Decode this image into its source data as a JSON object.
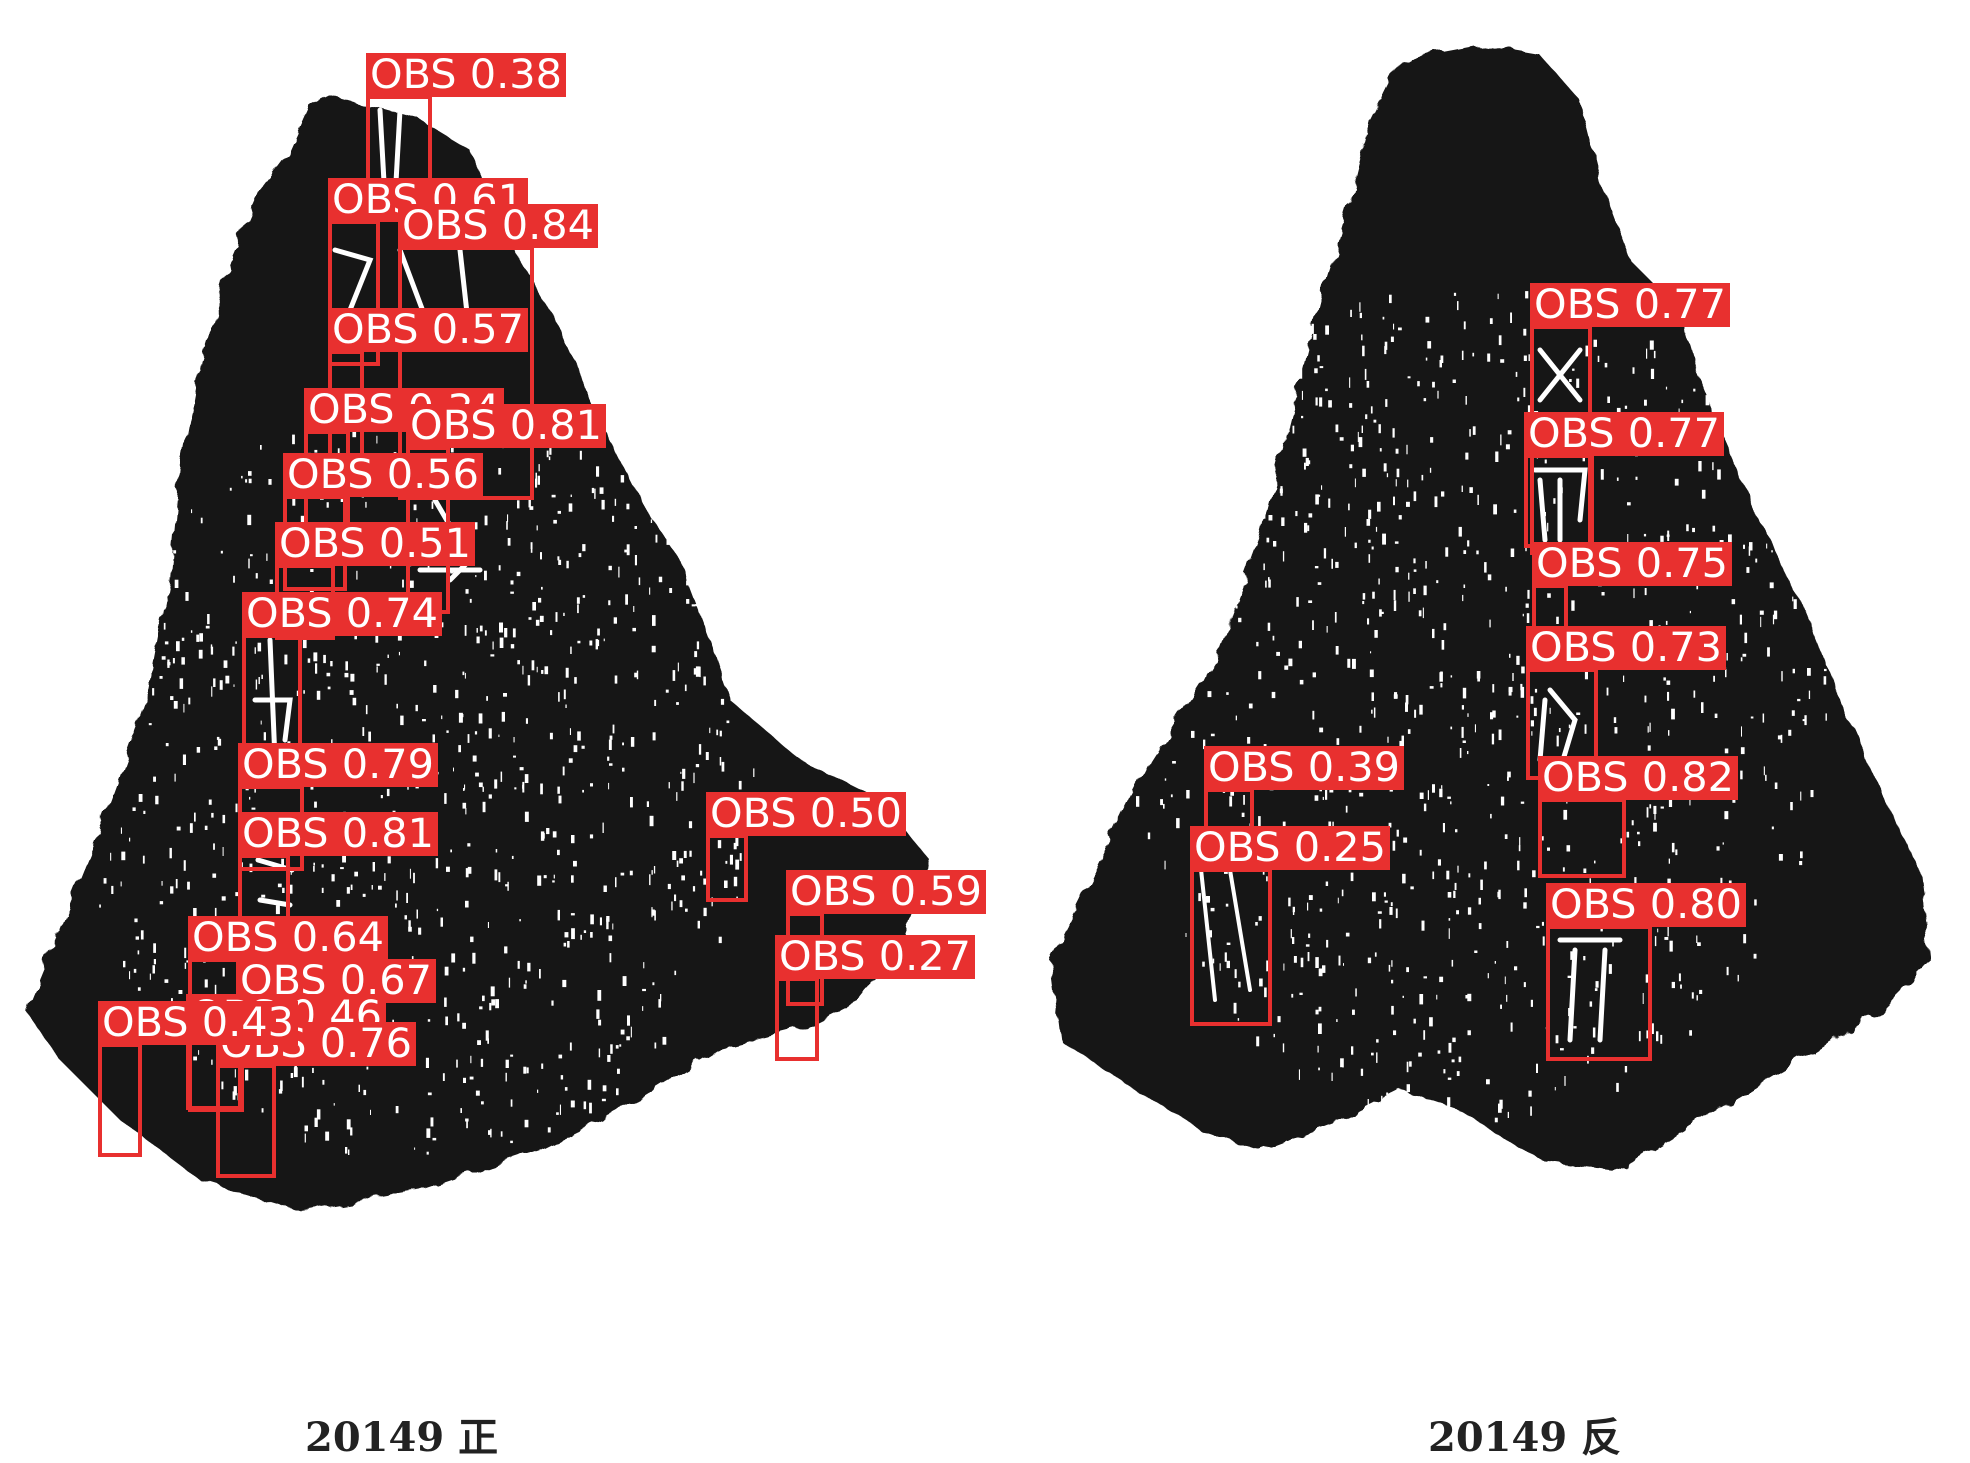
{
  "captions": {
    "front": "20149 正",
    "back": "20149 反"
  },
  "colors": {
    "detection": "#e8302f",
    "rubbing": "#141414",
    "background": "#ffffff"
  },
  "detections": {
    "front": [
      {
        "label": "OBS",
        "score": "0.38"
      },
      {
        "label": "OBS",
        "score": "0.61"
      },
      {
        "label": "OBS",
        "score": "0.84"
      },
      {
        "label": "OBS",
        "score": "0.57"
      },
      {
        "label": "OBS",
        "score": "0.34"
      },
      {
        "label": "OBS",
        "score": "0.81"
      },
      {
        "label": "OBS",
        "score": "0.56"
      },
      {
        "label": "OBS",
        "score": "0.51"
      },
      {
        "label": "OBS",
        "score": "0.74"
      },
      {
        "label": "OBS",
        "score": "0.79"
      },
      {
        "label": "OBS",
        "score": "0.81"
      },
      {
        "label": "OBS",
        "score": "0.50"
      },
      {
        "label": "OBS",
        "score": "0.59"
      },
      {
        "label": "OBS",
        "score": "0.64"
      },
      {
        "label": "OBS",
        "score": "0.67"
      },
      {
        "label": "OBS",
        "score": "0.27"
      },
      {
        "label": "OBS",
        "score": "0.46"
      },
      {
        "label": "OBS",
        "score": "0.76"
      },
      {
        "label": "OBS",
        "score": "0.43"
      }
    ],
    "back": [
      {
        "label": "OBS",
        "score": "0.77"
      },
      {
        "label": "OBS",
        "score": "0.77"
      },
      {
        "label": "OBS",
        "score": "0.75"
      },
      {
        "label": "OBS",
        "score": "0.73"
      },
      {
        "label": "OBS",
        "score": "0.39"
      },
      {
        "label": "OBS",
        "score": "0.82"
      },
      {
        "label": "OBS",
        "score": "0.25"
      },
      {
        "label": "OBS",
        "score": "0.80"
      }
    ]
  }
}
